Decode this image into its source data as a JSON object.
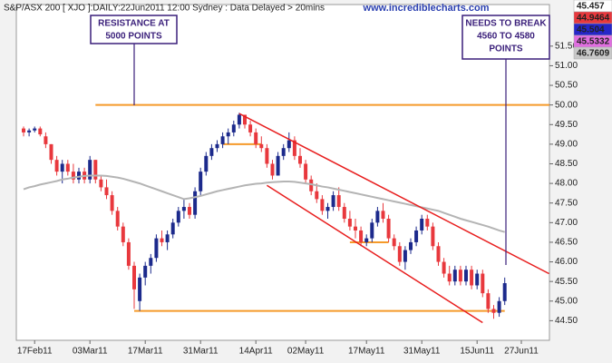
{
  "chart_data": {
    "type": "candlestick",
    "title": "S&P/ASX 200 [ XJO ]:DAILY:22Jun2011 12:00 Sydney : Data Delayed > 20mins",
    "watermark": "www.incrediblecharts.com",
    "categories": [
      null,
      null,
      "17Feb11",
      null,
      null,
      null,
      null,
      null,
      null,
      null,
      null,
      null,
      "03Mar11",
      null,
      null,
      null,
      null,
      null,
      null,
      null,
      null,
      null,
      "17Mar11",
      null,
      null,
      null,
      null,
      null,
      null,
      null,
      null,
      null,
      "31Mar11",
      null,
      null,
      null,
      null,
      null,
      null,
      null,
      null,
      null,
      "14Apr11",
      null,
      null,
      null,
      null,
      null,
      null,
      null,
      null,
      "02May11",
      null,
      null,
      null,
      null,
      null,
      null,
      null,
      null,
      null,
      null,
      "17May11",
      null,
      null,
      null,
      null,
      null,
      null,
      null,
      null,
      null,
      "31May11",
      null,
      null,
      null,
      null,
      null,
      null,
      null,
      null,
      null,
      "15Jun11",
      null,
      null,
      null,
      null,
      null,
      null,
      null,
      "27Jun11"
    ],
    "series": [
      {
        "name": "XJO",
        "up_color": "#1c2a8c",
        "down_color": "#e8383d",
        "values": [
          [
            49.4,
            49.45,
            49.2,
            49.3
          ],
          [
            49.3,
            49.4,
            49.2,
            49.35
          ],
          [
            49.35,
            49.45,
            49.3,
            49.4
          ],
          [
            49.4,
            49.45,
            49.2,
            49.25
          ],
          [
            49.2,
            49.3,
            48.9,
            49.0
          ],
          [
            49.0,
            49.0,
            48.5,
            48.6
          ],
          [
            48.6,
            48.7,
            48.2,
            48.3
          ],
          [
            48.3,
            48.6,
            48.0,
            48.5
          ],
          [
            48.5,
            48.6,
            48.2,
            48.3
          ],
          [
            48.3,
            48.5,
            48.0,
            48.1
          ],
          [
            48.1,
            48.4,
            48.0,
            48.3
          ],
          [
            48.3,
            48.4,
            48.0,
            48.1
          ],
          [
            48.1,
            48.7,
            48.0,
            48.6
          ],
          [
            48.6,
            48.6,
            48.0,
            48.1
          ],
          [
            48.1,
            48.2,
            47.8,
            47.9
          ],
          [
            47.9,
            48.1,
            47.6,
            47.7
          ],
          [
            47.7,
            47.8,
            47.2,
            47.3
          ],
          [
            47.3,
            47.4,
            46.8,
            46.9
          ],
          [
            46.9,
            47.0,
            46.4,
            46.5
          ],
          [
            46.5,
            46.6,
            45.8,
            45.9
          ],
          [
            45.9,
            46.0,
            44.8,
            45.3
          ],
          [
            45.0,
            45.7,
            44.75,
            45.6
          ],
          [
            45.6,
            46.0,
            45.4,
            45.9
          ],
          [
            45.9,
            46.2,
            45.7,
            46.1
          ],
          [
            46.1,
            46.7,
            46.0,
            46.6
          ],
          [
            46.6,
            46.8,
            46.4,
            46.5
          ],
          [
            46.5,
            46.8,
            46.3,
            46.7
          ],
          [
            46.7,
            47.1,
            46.6,
            47.0
          ],
          [
            47.0,
            47.4,
            46.9,
            47.3
          ],
          [
            47.3,
            47.6,
            47.1,
            47.4
          ],
          [
            47.4,
            47.5,
            47.1,
            47.2
          ],
          [
            47.2,
            47.9,
            47.1,
            47.8
          ],
          [
            47.8,
            48.4,
            47.7,
            48.3
          ],
          [
            48.3,
            48.8,
            48.2,
            48.7
          ],
          [
            48.7,
            49.0,
            48.6,
            48.9
          ],
          [
            48.9,
            49.1,
            48.8,
            49.0
          ],
          [
            49.0,
            49.3,
            48.9,
            49.2
          ],
          [
            49.2,
            49.4,
            49.0,
            49.3
          ],
          [
            49.3,
            49.6,
            49.2,
            49.5
          ],
          [
            49.5,
            49.8,
            49.4,
            49.75
          ],
          [
            49.75,
            49.75,
            49.4,
            49.5
          ],
          [
            49.5,
            49.6,
            49.2,
            49.3
          ],
          [
            49.3,
            49.4,
            48.9,
            49.0
          ],
          [
            49.0,
            49.2,
            48.8,
            48.9
          ],
          [
            48.9,
            49.0,
            48.4,
            48.5
          ],
          [
            48.5,
            48.6,
            48.1,
            48.2
          ],
          [
            48.2,
            48.8,
            48.2,
            48.7
          ],
          [
            48.7,
            49.0,
            48.6,
            48.9
          ],
          [
            48.9,
            49.3,
            48.8,
            49.1
          ],
          [
            49.1,
            49.2,
            48.6,
            48.7
          ],
          [
            48.7,
            48.9,
            48.4,
            48.5
          ],
          [
            48.5,
            48.6,
            48.0,
            48.1
          ],
          [
            48.1,
            48.2,
            47.7,
            47.8
          ],
          [
            47.8,
            48.0,
            47.5,
            47.6
          ],
          [
            47.6,
            47.7,
            47.2,
            47.3
          ],
          [
            47.3,
            47.5,
            47.1,
            47.4
          ],
          [
            47.4,
            47.8,
            47.3,
            47.7
          ],
          [
            47.7,
            47.9,
            47.3,
            47.4
          ],
          [
            47.4,
            47.5,
            47.0,
            47.1
          ],
          [
            47.1,
            47.3,
            46.8,
            46.9
          ],
          [
            46.9,
            47.1,
            46.6,
            46.8
          ],
          [
            46.8,
            46.9,
            46.4,
            46.5
          ],
          [
            46.5,
            46.7,
            46.4,
            46.6
          ],
          [
            46.6,
            47.1,
            46.5,
            47.0
          ],
          [
            47.0,
            47.4,
            46.9,
            47.3
          ],
          [
            47.3,
            47.5,
            47.0,
            47.1
          ],
          [
            47.1,
            47.2,
            46.5,
            46.6
          ],
          [
            46.6,
            46.7,
            46.3,
            46.4
          ],
          [
            46.4,
            46.5,
            45.9,
            46.0
          ],
          [
            46.0,
            46.4,
            45.8,
            46.3
          ],
          [
            46.3,
            46.6,
            46.2,
            46.5
          ],
          [
            46.5,
            46.9,
            46.4,
            46.8
          ],
          [
            46.8,
            47.2,
            46.7,
            47.1
          ],
          [
            47.1,
            47.2,
            46.8,
            46.9
          ],
          [
            46.9,
            47.0,
            46.3,
            46.4
          ],
          [
            46.4,
            46.5,
            45.9,
            46.0
          ],
          [
            46.0,
            46.1,
            45.6,
            45.7
          ],
          [
            45.7,
            45.9,
            45.4,
            45.5
          ],
          [
            45.5,
            45.9,
            45.4,
            45.8
          ],
          [
            45.8,
            45.9,
            45.4,
            45.5
          ],
          [
            45.5,
            45.9,
            45.4,
            45.8
          ],
          [
            45.8,
            45.9,
            45.3,
            45.4
          ],
          [
            45.4,
            45.8,
            45.3,
            45.7
          ],
          [
            45.7,
            45.8,
            45.1,
            45.2
          ],
          [
            45.2,
            45.3,
            44.7,
            44.8
          ],
          [
            44.8,
            44.9,
            44.55,
            44.7
          ],
          [
            44.7,
            45.1,
            44.6,
            45.0
          ],
          [
            45.0,
            45.6,
            44.9,
            45.457
          ],
          null,
          null,
          null
        ]
      },
      {
        "name": "MA",
        "color": "#b4b4b4",
        "values": [
          47.85,
          47.9,
          47.93,
          47.97,
          48.0,
          48.03,
          48.06,
          48.1,
          48.12,
          48.15,
          48.17,
          48.19,
          48.2,
          48.2,
          48.2,
          48.19,
          48.17,
          48.15,
          48.12,
          48.08,
          48.04,
          48.0,
          47.95,
          47.9,
          47.85,
          47.8,
          47.75,
          47.7,
          47.65,
          47.6,
          47.62,
          47.65,
          47.68,
          47.72,
          47.76,
          47.8,
          47.83,
          47.86,
          47.89,
          47.92,
          47.95,
          47.97,
          47.99,
          48.0,
          48.02,
          48.03,
          48.04,
          48.05,
          48.05,
          48.04,
          48.02,
          48.0,
          47.98,
          47.95,
          47.92,
          47.9,
          47.87,
          47.84,
          47.81,
          47.78,
          47.75,
          47.72,
          47.69,
          47.66,
          47.63,
          47.6,
          47.57,
          47.54,
          47.51,
          47.48,
          47.45,
          47.42,
          47.39,
          47.36,
          47.33,
          47.3,
          47.25,
          47.2,
          47.15,
          47.1,
          47.06,
          47.02,
          46.98,
          46.94,
          46.9,
          46.85,
          46.8,
          46.7609,
          null,
          null,
          null
        ]
      }
    ],
    "ylim": [
      44.0,
      52.56
    ],
    "yticks": [
      {
        "value": 44.5,
        "label": "44.50"
      },
      {
        "value": 45,
        "label": "45.00"
      },
      {
        "value": 45.5,
        "label": "45.50"
      },
      {
        "value": 46,
        "label": "46.00"
      },
      {
        "value": 46.5,
        "label": "46.50"
      },
      {
        "value": 47,
        "label": "47.00"
      },
      {
        "value": 47.5,
        "label": "47.50"
      },
      {
        "value": 48,
        "label": "48.00"
      },
      {
        "value": 48.5,
        "label": "48.50"
      },
      {
        "value": 49,
        "label": "49.00"
      },
      {
        "value": 49.5,
        "label": "49.50"
      },
      {
        "value": 50,
        "label": "50.00"
      },
      {
        "value": 50.5,
        "label": "50.50"
      },
      {
        "value": 51,
        "label": "51.00"
      },
      {
        "value": 51.5,
        "label": "51.50"
      }
    ],
    "levels": [
      {
        "value": 50.0,
        "from": 13,
        "to": 96
      },
      {
        "value": 44.75,
        "from": 20,
        "to": 87
      },
      {
        "value": 49.0,
        "from": 36,
        "to": 43
      },
      {
        "value": 46.5,
        "from": 59,
        "to": 66
      }
    ],
    "level_color": "#f59a2a",
    "trendlines": [
      {
        "points": [
          [
            39,
            49.78
          ],
          [
            95,
            45.7
          ]
        ]
      },
      {
        "points": [
          [
            44,
            47.95
          ],
          [
            83,
            44.45
          ]
        ]
      }
    ],
    "trend_color": "#e81e1e",
    "readouts": [
      {
        "value": 45.457,
        "label": "45.457",
        "bg": "#ffffff",
        "fg": "#1c2a8c"
      },
      {
        "value": 44.9464,
        "label": "44.9464",
        "bg": "#e8383d",
        "fg": "#ffffff"
      },
      {
        "value": 45.504,
        "label": "45.504",
        "bg": "#2626c8",
        "fg": "#ffffff"
      },
      {
        "value": 45.5332,
        "label": "45.5332",
        "bg": "#e06ee0",
        "fg": "#ffffff"
      },
      {
        "value": 46.7609,
        "label": "46.7609",
        "bg": "#c8c8c8",
        "fg": "#ffffff"
      }
    ],
    "annotations": [
      {
        "lines": [
          "RESISTANCE AT",
          "5000 POINTS"
        ]
      },
      {
        "lines": [
          "NEEDS TO BREAK",
          "4560 TO 4580",
          "POINTS"
        ]
      }
    ]
  }
}
